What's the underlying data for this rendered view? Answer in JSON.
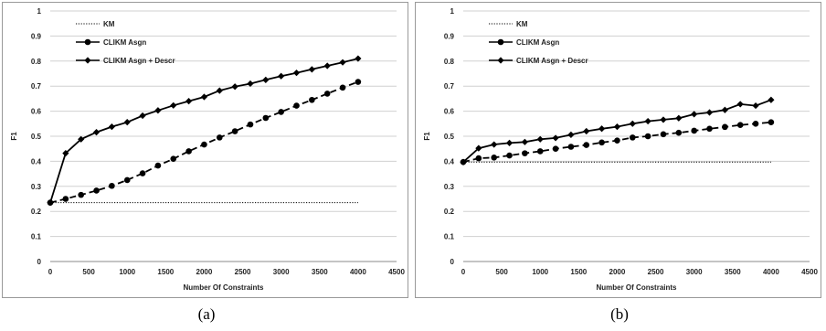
{
  "chart_data": [
    {
      "type": "line",
      "caption": "(a)",
      "xlabel": "Number Of Constraints",
      "ylabel": "F1",
      "xlim": [
        0,
        4500
      ],
      "ylim": [
        0,
        1
      ],
      "xticks": [
        0,
        500,
        1000,
        1500,
        2000,
        2500,
        3000,
        3500,
        4000,
        4500
      ],
      "yticks": [
        0,
        0.1,
        0.2,
        0.3,
        0.4,
        0.5,
        0.6,
        0.7,
        0.8,
        0.9,
        1
      ],
      "grid": "horizontal",
      "legend_position": "top-left",
      "series": [
        {
          "name": "KM",
          "style": "dotted",
          "marker": "none",
          "x": [
            0,
            4000
          ],
          "y": [
            0.235,
            0.235
          ]
        },
        {
          "name": "CLIKM Asgn",
          "style": "dashed",
          "marker": "circle",
          "x": [
            0,
            200,
            400,
            600,
            800,
            1000,
            1200,
            1400,
            1600,
            1800,
            2000,
            2200,
            2400,
            2600,
            2800,
            3000,
            3200,
            3400,
            3600,
            3800,
            4000
          ],
          "y": [
            0.235,
            0.25,
            0.266,
            0.283,
            0.302,
            0.325,
            0.352,
            0.383,
            0.41,
            0.44,
            0.467,
            0.495,
            0.52,
            0.547,
            0.573,
            0.597,
            0.622,
            0.645,
            0.67,
            0.694,
            0.717
          ]
        },
        {
          "name": "CLIKM Asgn + Descr",
          "style": "solid",
          "marker": "diamond",
          "x": [
            0,
            200,
            400,
            600,
            800,
            1000,
            1200,
            1400,
            1600,
            1800,
            2000,
            2200,
            2400,
            2600,
            2800,
            3000,
            3200,
            3400,
            3600,
            3800,
            4000
          ],
          "y": [
            0.235,
            0.432,
            0.488,
            0.516,
            0.538,
            0.556,
            0.582,
            0.603,
            0.623,
            0.64,
            0.657,
            0.682,
            0.698,
            0.71,
            0.725,
            0.74,
            0.753,
            0.767,
            0.781,
            0.795,
            0.81
          ]
        }
      ]
    },
    {
      "type": "line",
      "caption": "(b)",
      "xlabel": "Number Of Constraints",
      "ylabel": "F1",
      "xlim": [
        0,
        4500
      ],
      "ylim": [
        0,
        1
      ],
      "xticks": [
        0,
        500,
        1000,
        1500,
        2000,
        2500,
        3000,
        3500,
        4000,
        4500
      ],
      "yticks": [
        0,
        0.1,
        0.2,
        0.3,
        0.4,
        0.5,
        0.6,
        0.7,
        0.8,
        0.9,
        1
      ],
      "grid": "horizontal",
      "legend_position": "top-left",
      "series": [
        {
          "name": "KM",
          "style": "dotted",
          "marker": "none",
          "x": [
            0,
            4000
          ],
          "y": [
            0.397,
            0.397
          ]
        },
        {
          "name": "CLIKM Asgn",
          "style": "dashed",
          "marker": "circle",
          "x": [
            0,
            200,
            400,
            600,
            800,
            1000,
            1200,
            1400,
            1600,
            1800,
            2000,
            2200,
            2400,
            2600,
            2800,
            3000,
            3200,
            3400,
            3600,
            3800,
            4000
          ],
          "y": [
            0.397,
            0.412,
            0.415,
            0.423,
            0.432,
            0.44,
            0.45,
            0.458,
            0.465,
            0.475,
            0.483,
            0.495,
            0.5,
            0.508,
            0.514,
            0.522,
            0.53,
            0.537,
            0.545,
            0.55,
            0.556
          ]
        },
        {
          "name": "CLIKM Asgn + Descr",
          "style": "solid",
          "marker": "diamond",
          "x": [
            0,
            200,
            400,
            600,
            800,
            1000,
            1200,
            1400,
            1600,
            1800,
            2000,
            2200,
            2400,
            2600,
            2800,
            3000,
            3200,
            3400,
            3600,
            3800,
            4000
          ],
          "y": [
            0.397,
            0.452,
            0.467,
            0.473,
            0.477,
            0.488,
            0.493,
            0.506,
            0.52,
            0.53,
            0.538,
            0.55,
            0.56,
            0.566,
            0.572,
            0.588,
            0.595,
            0.605,
            0.628,
            0.622,
            0.645
          ]
        }
      ]
    }
  ]
}
